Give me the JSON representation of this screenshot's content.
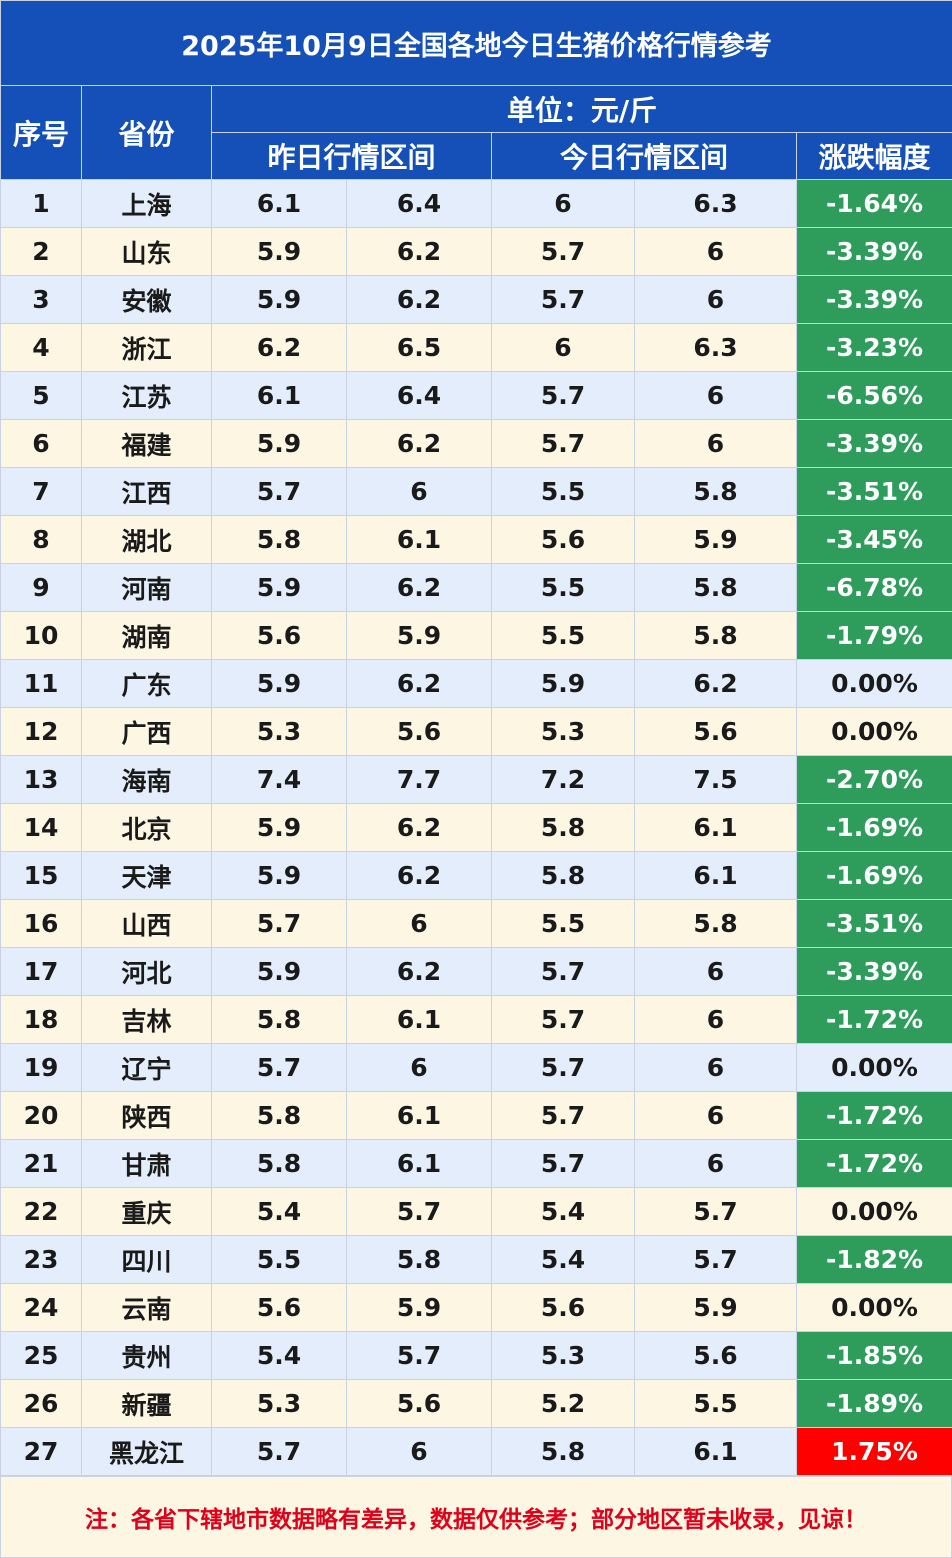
{
  "title": "2025年10月9日全国各地今日生猪价格行情参考",
  "header": {
    "seq": "序号",
    "province": "省份",
    "unit": "单位：元/斤",
    "yesterday": "昨日行情区间",
    "today": "今日行情区间",
    "change": "涨跌幅度"
  },
  "rows": [
    {
      "no": "1",
      "province": "上海",
      "y_low": "6.1",
      "y_high": "6.4",
      "t_low": "6",
      "t_high": "6.3",
      "change": "-1.64%",
      "trend": "down"
    },
    {
      "no": "2",
      "province": "山东",
      "y_low": "5.9",
      "y_high": "6.2",
      "t_low": "5.7",
      "t_high": "6",
      "change": "-3.39%",
      "trend": "down"
    },
    {
      "no": "3",
      "province": "安徽",
      "y_low": "5.9",
      "y_high": "6.2",
      "t_low": "5.7",
      "t_high": "6",
      "change": "-3.39%",
      "trend": "down"
    },
    {
      "no": "4",
      "province": "浙江",
      "y_low": "6.2",
      "y_high": "6.5",
      "t_low": "6",
      "t_high": "6.3",
      "change": "-3.23%",
      "trend": "down"
    },
    {
      "no": "5",
      "province": "江苏",
      "y_low": "6.1",
      "y_high": "6.4",
      "t_low": "5.7",
      "t_high": "6",
      "change": "-6.56%",
      "trend": "down"
    },
    {
      "no": "6",
      "province": "福建",
      "y_low": "5.9",
      "y_high": "6.2",
      "t_low": "5.7",
      "t_high": "6",
      "change": "-3.39%",
      "trend": "down"
    },
    {
      "no": "7",
      "province": "江西",
      "y_low": "5.7",
      "y_high": "6",
      "t_low": "5.5",
      "t_high": "5.8",
      "change": "-3.51%",
      "trend": "down"
    },
    {
      "no": "8",
      "province": "湖北",
      "y_low": "5.8",
      "y_high": "6.1",
      "t_low": "5.6",
      "t_high": "5.9",
      "change": "-3.45%",
      "trend": "down"
    },
    {
      "no": "9",
      "province": "河南",
      "y_low": "5.9",
      "y_high": "6.2",
      "t_low": "5.5",
      "t_high": "5.8",
      "change": "-6.78%",
      "trend": "down"
    },
    {
      "no": "10",
      "province": "湖南",
      "y_low": "5.6",
      "y_high": "5.9",
      "t_low": "5.5",
      "t_high": "5.8",
      "change": "-1.79%",
      "trend": "down"
    },
    {
      "no": "11",
      "province": "广东",
      "y_low": "5.9",
      "y_high": "6.2",
      "t_low": "5.9",
      "t_high": "6.2",
      "change": "0.00%",
      "trend": "flat"
    },
    {
      "no": "12",
      "province": "广西",
      "y_low": "5.3",
      "y_high": "5.6",
      "t_low": "5.3",
      "t_high": "5.6",
      "change": "0.00%",
      "trend": "flat"
    },
    {
      "no": "13",
      "province": "海南",
      "y_low": "7.4",
      "y_high": "7.7",
      "t_low": "7.2",
      "t_high": "7.5",
      "change": "-2.70%",
      "trend": "down"
    },
    {
      "no": "14",
      "province": "北京",
      "y_low": "5.9",
      "y_high": "6.2",
      "t_low": "5.8",
      "t_high": "6.1",
      "change": "-1.69%",
      "trend": "down"
    },
    {
      "no": "15",
      "province": "天津",
      "y_low": "5.9",
      "y_high": "6.2",
      "t_low": "5.8",
      "t_high": "6.1",
      "change": "-1.69%",
      "trend": "down"
    },
    {
      "no": "16",
      "province": "山西",
      "y_low": "5.7",
      "y_high": "6",
      "t_low": "5.5",
      "t_high": "5.8",
      "change": "-3.51%",
      "trend": "down"
    },
    {
      "no": "17",
      "province": "河北",
      "y_low": "5.9",
      "y_high": "6.2",
      "t_low": "5.7",
      "t_high": "6",
      "change": "-3.39%",
      "trend": "down"
    },
    {
      "no": "18",
      "province": "吉林",
      "y_low": "5.8",
      "y_high": "6.1",
      "t_low": "5.7",
      "t_high": "6",
      "change": "-1.72%",
      "trend": "down"
    },
    {
      "no": "19",
      "province": "辽宁",
      "y_low": "5.7",
      "y_high": "6",
      "t_low": "5.7",
      "t_high": "6",
      "change": "0.00%",
      "trend": "flat"
    },
    {
      "no": "20",
      "province": "陕西",
      "y_low": "5.8",
      "y_high": "6.1",
      "t_low": "5.7",
      "t_high": "6",
      "change": "-1.72%",
      "trend": "down"
    },
    {
      "no": "21",
      "province": "甘肃",
      "y_low": "5.8",
      "y_high": "6.1",
      "t_low": "5.7",
      "t_high": "6",
      "change": "-1.72%",
      "trend": "down"
    },
    {
      "no": "22",
      "province": "重庆",
      "y_low": "5.4",
      "y_high": "5.7",
      "t_low": "5.4",
      "t_high": "5.7",
      "change": "0.00%",
      "trend": "flat"
    },
    {
      "no": "23",
      "province": "四川",
      "y_low": "5.5",
      "y_high": "5.8",
      "t_low": "5.4",
      "t_high": "5.7",
      "change": "-1.82%",
      "trend": "down"
    },
    {
      "no": "24",
      "province": "云南",
      "y_low": "5.6",
      "y_high": "5.9",
      "t_low": "5.6",
      "t_high": "5.9",
      "change": "0.00%",
      "trend": "flat"
    },
    {
      "no": "25",
      "province": "贵州",
      "y_low": "5.4",
      "y_high": "5.7",
      "t_low": "5.3",
      "t_high": "5.6",
      "change": "-1.85%",
      "trend": "down"
    },
    {
      "no": "26",
      "province": "新疆",
      "y_low": "5.3",
      "y_high": "5.6",
      "t_low": "5.2",
      "t_high": "5.5",
      "change": "-1.89%",
      "trend": "down"
    },
    {
      "no": "27",
      "province": "黑龙江",
      "y_low": "5.7",
      "y_high": "6",
      "t_low": "5.8",
      "t_high": "6.1",
      "change": "1.75%",
      "trend": "up"
    }
  ],
  "note": "注：各省下辖地市数据略有差异，数据仅供参考；部分地区暂未收录，见谅！",
  "colors": {
    "header_blue": "#1550b8",
    "row_blue": "#e4edfb",
    "row_cream": "#fdf6e3",
    "down_green": "#2e9c5b",
    "up_red": "#ff0000",
    "note_red": "#e0001a"
  }
}
